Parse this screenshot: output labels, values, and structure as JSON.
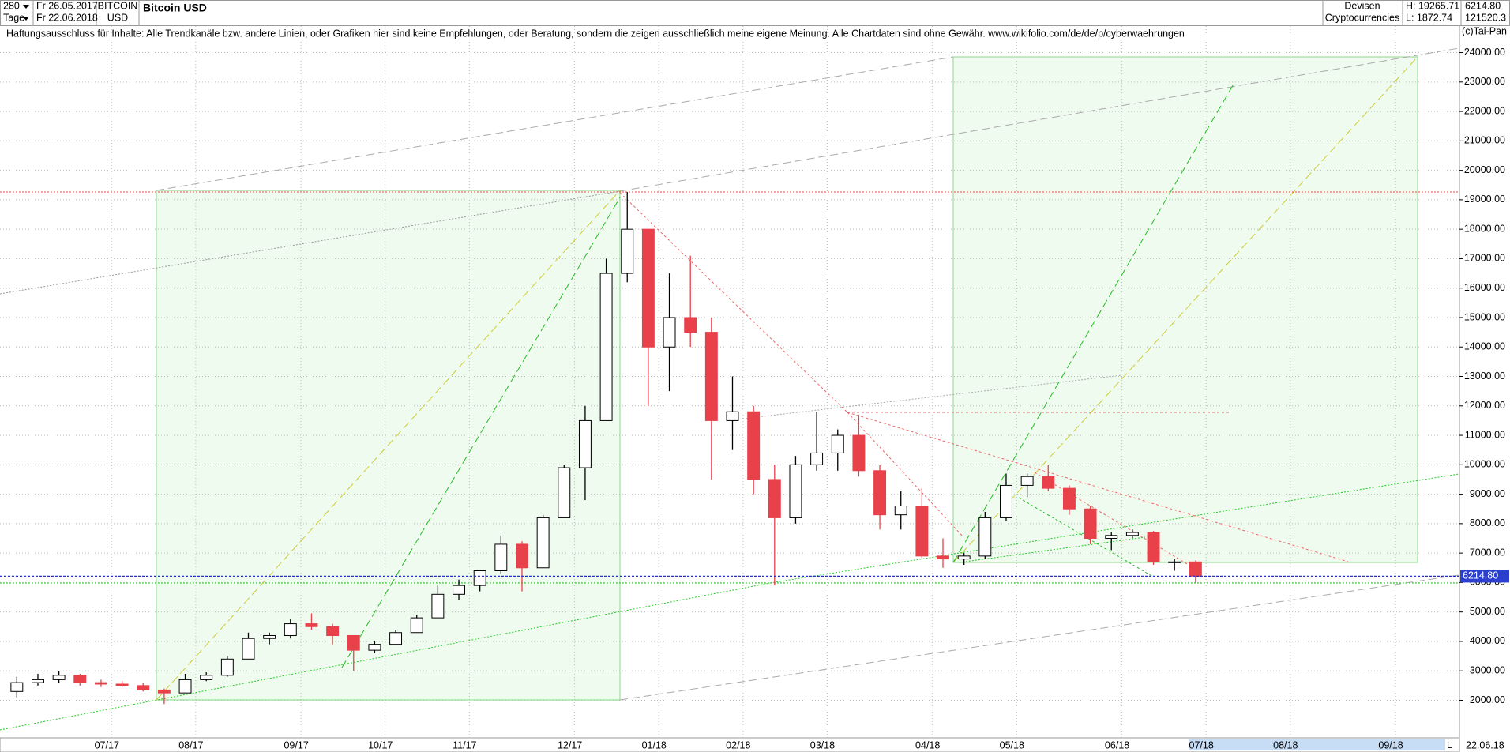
{
  "header": {
    "period_count": "280",
    "period_unit": "Tage",
    "date_from": "Fr 26.05.2017",
    "date_to": "Fr 22.06.2018",
    "symbol": "BITCOIN",
    "currency": "USD",
    "group": "Devisen",
    "subgroup": "Cryptocurrencies",
    "high_label": "H: 19265.71",
    "low_label": "L: 1872.74",
    "last_label": "6214.80",
    "volume_label": "121520.3",
    "copyright": "(c)Tai-Pan",
    "end_date": "22.06.18",
    "scale_mode": "L"
  },
  "disclaimer": "Haftungsausschluss für Inhalte: Alle Trendkanäle bzw. andere Linien, oder Grafiken hier sind keine Empfehlungen, oder Beratung, sondern die zeigen ausschließlich meine eigene Meinung. Alle Chartdaten sind ohne Gewähr.  www.wikifolio.com/de/de/p/cyberwaehrungen",
  "chart_data": {
    "type": "candlestick",
    "title": "Bitcoin USD",
    "categories": [
      null,
      null,
      null,
      null,
      null,
      "07/17",
      null,
      null,
      null,
      "08/17",
      null,
      null,
      null,
      null,
      "09/17",
      null,
      null,
      null,
      "10/17",
      null,
      null,
      null,
      "11/17",
      null,
      null,
      null,
      null,
      "12/17",
      null,
      null,
      null,
      "01/18",
      null,
      null,
      null,
      "02/18",
      null,
      null,
      null,
      "03/18",
      null,
      null,
      null,
      null,
      "04/18",
      null,
      null,
      null,
      "05/18",
      null,
      null,
      null,
      null,
      "06/18",
      null,
      null,
      null,
      "07/18",
      null,
      null,
      null,
      "08/18",
      null,
      null,
      null,
      null,
      "09/18",
      null,
      null
    ],
    "open": [
      2300,
      2600,
      2700,
      2850,
      2600,
      2550,
      2500,
      2350,
      2250,
      2700,
      2850,
      3400,
      4100,
      4200,
      4600,
      4500,
      4200,
      3700,
      3900,
      4300,
      4800,
      5600,
      5900,
      6400,
      7300,
      6500,
      8200,
      9900,
      11500,
      16500,
      18000,
      14000,
      15000,
      14500,
      11500,
      11800,
      9500,
      8200,
      10000,
      10400,
      11000,
      9800,
      8300,
      8600,
      6900,
      6800,
      6900,
      8200,
      9300,
      9600,
      9200,
      8500,
      7500,
      7600,
      7700,
      6700,
      6700,
      null,
      null,
      null,
      null,
      null,
      null,
      null,
      null,
      null,
      null,
      null,
      null
    ],
    "high": [
      2800,
      2900,
      2980,
      2900,
      2700,
      2650,
      2600,
      2400,
      2900,
      2950,
      3500,
      4300,
      4300,
      4750,
      4950,
      4600,
      4200,
      4000,
      4400,
      4900,
      5900,
      6100,
      6400,
      7600,
      7400,
      8300,
      10000,
      12000,
      17000,
      19265.71,
      18000,
      16500,
      17100,
      15000,
      13000,
      12000,
      10000,
      10300,
      11800,
      11200,
      11700,
      10000,
      9100,
      9200,
      7500,
      7000,
      8400,
      9700,
      9700,
      10000,
      9300,
      8600,
      7700,
      7800,
      7750,
      6800,
      6750,
      null,
      null,
      null,
      null,
      null,
      null,
      null,
      null,
      null,
      null,
      null,
      null
    ],
    "low": [
      2100,
      2500,
      2600,
      2500,
      2450,
      2450,
      2300,
      1872.74,
      2250,
      2650,
      2800,
      3400,
      3900,
      4100,
      4400,
      3900,
      3000,
      3600,
      3900,
      4300,
      4800,
      5400,
      5700,
      6300,
      5700,
      6500,
      8200,
      8800,
      11500,
      16200,
      12000,
      12500,
      14000,
      9500,
      10500,
      9000,
      5900,
      8000,
      9800,
      9800,
      9600,
      7800,
      7800,
      6800,
      6500,
      6600,
      6800,
      8100,
      8900,
      9100,
      8300,
      7300,
      7100,
      7500,
      6600,
      6400,
      6000,
      null,
      null,
      null,
      null,
      null,
      null,
      null,
      null,
      null,
      null,
      null,
      null
    ],
    "close": [
      2600,
      2700,
      2850,
      2600,
      2550,
      2500,
      2350,
      2250,
      2700,
      2850,
      3400,
      4100,
      4200,
      4600,
      4500,
      4200,
      3700,
      3900,
      4300,
      4800,
      5600,
      5900,
      6400,
      7300,
      6500,
      8200,
      9900,
      11500,
      16500,
      18000,
      14000,
      15000,
      14500,
      11500,
      11800,
      9500,
      8200,
      10000,
      10400,
      11000,
      9800,
      8300,
      8600,
      6900,
      6800,
      6900,
      8200,
      9300,
      9600,
      9200,
      8500,
      7500,
      7600,
      7700,
      6700,
      6700,
      6214.8,
      null,
      null,
      null,
      null,
      null,
      null,
      null,
      null,
      null,
      null,
      null,
      null
    ],
    "up_color": "#ffffff",
    "down_color": "#e8414a",
    "ylim": [
      725,
      24900
    ],
    "yticks": [
      {
        "value": 2000,
        "label": "2000.00"
      },
      {
        "value": 3000,
        "label": "3000.00"
      },
      {
        "value": 4000,
        "label": "4000.00"
      },
      {
        "value": 5000,
        "label": "5000.00"
      },
      {
        "value": 6000,
        "label": "6000.00"
      },
      {
        "value": 7000,
        "label": "7000.00"
      },
      {
        "value": 8000,
        "label": "8000.00"
      },
      {
        "value": 9000,
        "label": "9000.00"
      },
      {
        "value": 10000,
        "label": "10000.00"
      },
      {
        "value": 11000,
        "label": "11000.00"
      },
      {
        "value": 12000,
        "label": "12000.00"
      },
      {
        "value": 13000,
        "label": "13000.00"
      },
      {
        "value": 14000,
        "label": "14000.00"
      },
      {
        "value": 15000,
        "label": "15000.00"
      },
      {
        "value": 16000,
        "label": "16000.00"
      },
      {
        "value": 17000,
        "label": "17000.00"
      },
      {
        "value": 18000,
        "label": "18000.00"
      },
      {
        "value": 19000,
        "label": "19000.00"
      },
      {
        "value": 20000,
        "label": "20000.00"
      },
      {
        "value": 21000,
        "label": "21000.00"
      },
      {
        "value": 22000,
        "label": "22000.00"
      },
      {
        "value": 23000,
        "label": "23000.00"
      },
      {
        "value": 24000,
        "label": "24000.00"
      }
    ],
    "last_price": {
      "value": 6214.8,
      "label": "6214.80"
    },
    "grid": true
  }
}
